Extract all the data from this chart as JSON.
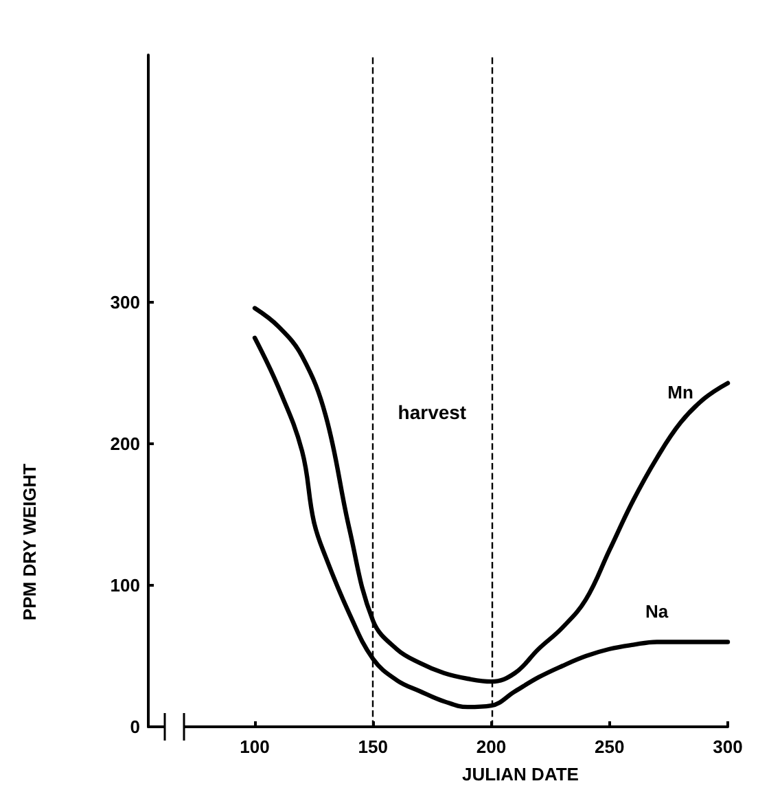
{
  "chart_data": {
    "type": "line",
    "xlabel": "JULIAN DATE",
    "ylabel": "PPM DRY WEIGHT",
    "xlim": [
      55,
      300
    ],
    "xticks": [
      100,
      150,
      200,
      250,
      300
    ],
    "ylim": [
      0,
      475
    ],
    "yticks": [
      0,
      100,
      200,
      300
    ],
    "grid": false,
    "legend": false,
    "marker": "none",
    "line_style": "solid",
    "series": [
      {
        "name": "Mn",
        "color": "#000000",
        "x": [
          100,
          110,
          120,
          130,
          140,
          150,
          160,
          170,
          180,
          190,
          200,
          210,
          220,
          230,
          240,
          250,
          260,
          270,
          280,
          290,
          300
        ],
        "values": [
          296,
          283,
          262,
          220,
          140,
          75,
          55,
          45,
          38,
          34,
          32,
          38,
          55,
          70,
          90,
          125,
          160,
          190,
          215,
          232,
          243
        ]
      },
      {
        "name": "Na",
        "color": "#000000",
        "x": [
          100,
          110,
          120,
          125,
          130,
          140,
          150,
          160,
          170,
          180,
          190,
          200,
          210,
          220,
          230,
          240,
          250,
          260,
          270,
          280,
          300
        ],
        "values": [
          275,
          240,
          195,
          145,
          120,
          80,
          48,
          33,
          25,
          18,
          14,
          15,
          25,
          35,
          43,
          50,
          55,
          58,
          60,
          60,
          60
        ]
      }
    ],
    "ref_lines": [
      {
        "axis": "x",
        "value": 150,
        "line_style": "dashed"
      },
      {
        "axis": "x",
        "value": 200,
        "line_style": "dashed"
      }
    ],
    "annotations": [
      "harvest"
    ]
  }
}
